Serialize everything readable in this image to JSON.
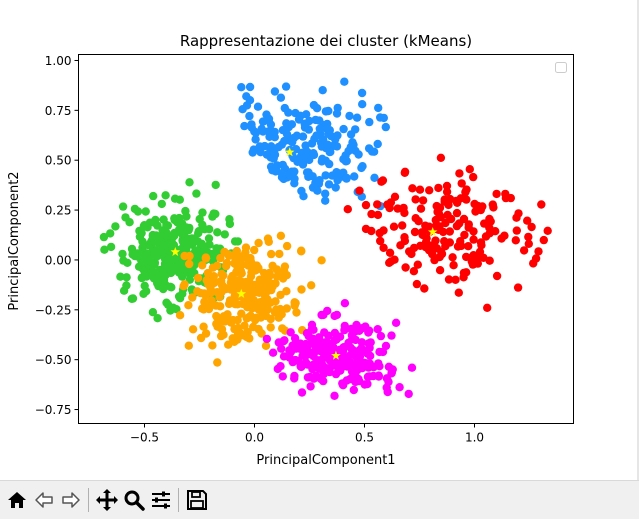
{
  "chart_data": {
    "type": "scatter",
    "title": "Rappresentazione dei cluster (kMeans)",
    "xlabel": "PrincipalComponent1",
    "ylabel": "PrincipalComponent2",
    "xlim": [
      -0.8,
      1.45
    ],
    "ylim": [
      -0.82,
      1.03
    ],
    "xticks": [
      -0.5,
      0.0,
      0.5,
      1.0
    ],
    "xtick_labels": [
      "−0.5",
      "0.0",
      "0.5",
      "1.0"
    ],
    "yticks": [
      -0.75,
      -0.5,
      -0.25,
      0.0,
      0.25,
      0.5,
      0.75,
      1.0
    ],
    "ytick_labels": [
      "−0.75",
      "−0.50",
      "−0.25",
      "0.00",
      "0.25",
      "0.50",
      "0.75",
      "1.00"
    ],
    "grid": false,
    "legend": {
      "position": "top-right",
      "entries": []
    },
    "series": [
      {
        "color": "#1e90ff",
        "clusters": [
          {
            "cx": 0.2,
            "cy": 0.55,
            "sx": 0.17,
            "sy": 0.14,
            "n": 200
          }
        ],
        "seed": 11,
        "keep": "x + 0.8*y > 0.42 && y > 0.22 && x > -0.25 && x < 0.62"
      },
      {
        "color": "#ff0000",
        "clusters": [
          {
            "cx": 0.85,
            "cy": 0.13,
            "sx": 0.2,
            "sy": 0.15,
            "n": 180
          }
        ],
        "seed": 23,
        "keep": "x > 0.42 && x < 1.36 && y > -0.32 && y < 0.55 && (x - 0.55) > -0.7*(y-0.05)"
      },
      {
        "color": "#32cd32",
        "clusters": [
          {
            "cx": -0.36,
            "cy": 0.04,
            "sx": 0.12,
            "sy": 0.12,
            "n": 300
          }
        ],
        "seed": 37,
        "keep": "x > -0.7 && x < -0.02 && y > -0.32 && y < 0.39"
      },
      {
        "color": "#ffa500",
        "clusters": [
          {
            "cx": -0.06,
            "cy": -0.17,
            "sx": 0.12,
            "sy": 0.12,
            "n": 260
          }
        ],
        "seed": 53,
        "keep": "x > -0.36 && x < 0.33 && y > -0.53 && y < 0.13"
      },
      {
        "color": "#ff00ff",
        "clusters": [
          {
            "cx": 0.37,
            "cy": -0.48,
            "sx": 0.15,
            "sy": 0.09,
            "n": 230
          }
        ],
        "seed": 71,
        "keep": "x > 0.04 && x < 0.72 && y > -0.72 && y < -0.17"
      }
    ],
    "centroids": {
      "color": "#ffff00",
      "points": [
        {
          "x": 0.16,
          "y": 0.54
        },
        {
          "x": 0.81,
          "y": 0.14
        },
        {
          "x": -0.36,
          "y": 0.04
        },
        {
          "x": -0.06,
          "y": -0.17
        },
        {
          "x": 0.37,
          "y": -0.48
        }
      ]
    }
  },
  "toolbar": {
    "buttons": [
      {
        "name": "home-button",
        "icon": "home-icon"
      },
      {
        "name": "back-button",
        "icon": "arrow-left-icon"
      },
      {
        "name": "forward-button",
        "icon": "arrow-right-icon"
      },
      {
        "name": "pan-button",
        "icon": "move-icon"
      },
      {
        "name": "zoom-button",
        "icon": "magnifier-icon"
      },
      {
        "name": "configure-subplots-button",
        "icon": "sliders-icon"
      },
      {
        "name": "save-button",
        "icon": "floppy-disk-icon"
      }
    ]
  }
}
